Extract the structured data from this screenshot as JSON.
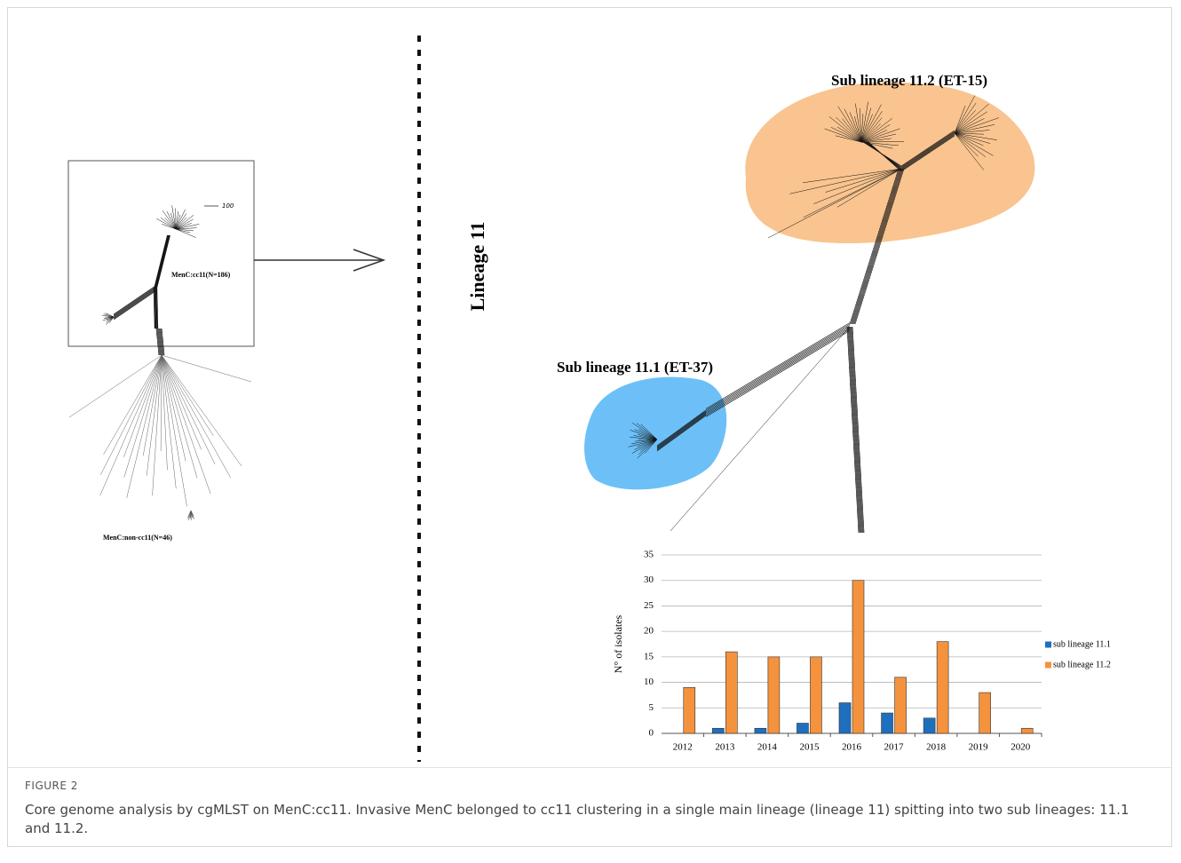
{
  "figure": {
    "left_panel": {
      "scale_label": "100",
      "cc11_label": "MenC:cc11(N=186)",
      "non_cc11_label": "MenC:non-cc11(N=46)"
    },
    "lineage_label": "Lineage 11",
    "sub_lineage_2_label": "Sub lineage 11.2 (ET-15)",
    "sub_lineage_1_label": "Sub lineage 11.1 (ET-37)",
    "figure_label": "FIGURE 2",
    "caption": "Core genome analysis by cgMLST on MenC:cc11. Invasive MenC belonged to cc11 clustering in a single main lineage (lineage 11) spitting into two sub lineages: 11.1 and 11.2."
  },
  "chart_data": {
    "type": "bar",
    "y_label": "N° of isolates",
    "categories": [
      "2012",
      "2013",
      "2014",
      "2015",
      "2016",
      "2017",
      "2018",
      "2019",
      "2020"
    ],
    "series": [
      {
        "name": "sub lineage 11.1",
        "color": "#1f6fbf",
        "values": [
          0,
          1,
          1,
          2,
          6,
          4,
          3,
          0,
          0
        ]
      },
      {
        "name": "sub lineage 11.2",
        "color": "#f5923e",
        "values": [
          9,
          16,
          15,
          15,
          30,
          11,
          18,
          8,
          1
        ]
      }
    ],
    "ylim": [
      0,
      35
    ],
    "yticks": [
      0,
      5,
      10,
      15,
      20,
      25,
      30,
      35
    ],
    "grid": true,
    "legend": "right"
  }
}
